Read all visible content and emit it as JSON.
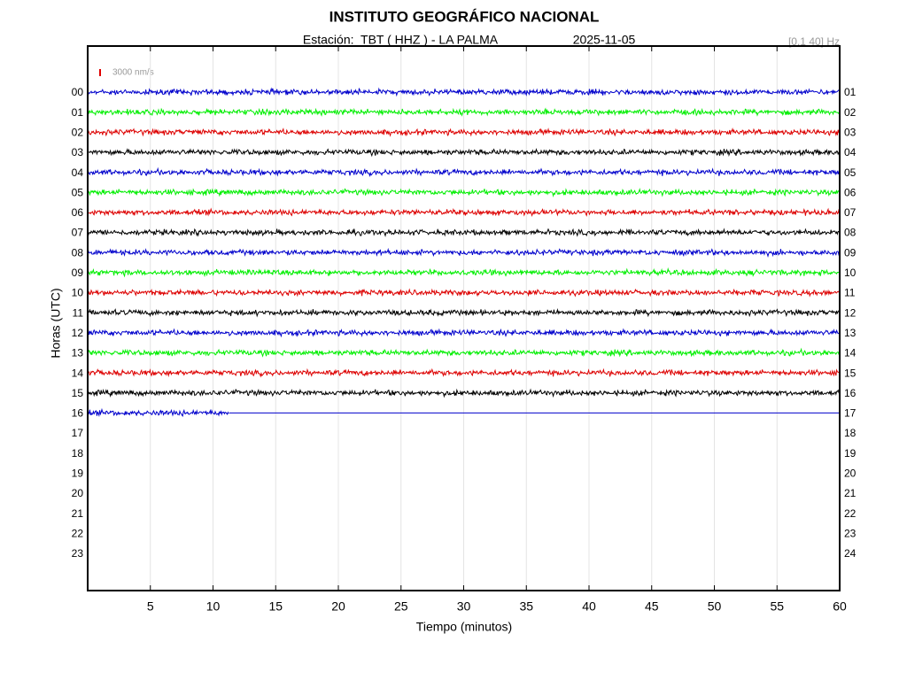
{
  "chart_data": {
    "type": "helicorder",
    "title": "INSTITUTO GEOGRÁFICO NACIONAL",
    "station": "Estación:  TBT ( HHZ ) - LA PALMA",
    "date": "2025-11-05",
    "filter": "[0.1 40] Hz",
    "scale_label": "3000 nm/s",
    "scale_value": 3000,
    "scale_color": "#e00000",
    "xlabel": "Tiempo (minutos)",
    "ylabel": "Horas (UTC)",
    "xlim": [
      0,
      60
    ],
    "xticks": [
      5,
      10,
      15,
      20,
      25,
      30,
      35,
      40,
      45,
      50,
      55,
      60
    ],
    "grid": true,
    "rows": [
      {
        "left": "00",
        "right": "01",
        "color": "#0000cc",
        "data_end": 60,
        "amplitude": 900
      },
      {
        "left": "01",
        "right": "02",
        "color": "#00ee00",
        "data_end": 60,
        "amplitude": 900
      },
      {
        "left": "02",
        "right": "03",
        "color": "#dd0000",
        "data_end": 60,
        "amplitude": 900
      },
      {
        "left": "03",
        "right": "04",
        "color": "#000000",
        "data_end": 60,
        "amplitude": 900
      },
      {
        "left": "04",
        "right": "05",
        "color": "#0000cc",
        "data_end": 60,
        "amplitude": 900
      },
      {
        "left": "05",
        "right": "06",
        "color": "#00ee00",
        "data_end": 60,
        "amplitude": 900
      },
      {
        "left": "06",
        "right": "07",
        "color": "#dd0000",
        "data_end": 60,
        "amplitude": 900
      },
      {
        "left": "07",
        "right": "08",
        "color": "#000000",
        "data_end": 60,
        "amplitude": 900
      },
      {
        "left": "08",
        "right": "09",
        "color": "#0000cc",
        "data_end": 60,
        "amplitude": 900
      },
      {
        "left": "09",
        "right": "10",
        "color": "#00ee00",
        "data_end": 60,
        "amplitude": 900
      },
      {
        "left": "10",
        "right": "11",
        "color": "#dd0000",
        "data_end": 60,
        "amplitude": 900
      },
      {
        "left": "11",
        "right": "12",
        "color": "#000000",
        "data_end": 60,
        "amplitude": 900
      },
      {
        "left": "12",
        "right": "13",
        "color": "#0000cc",
        "data_end": 60,
        "amplitude": 900
      },
      {
        "left": "13",
        "right": "14",
        "color": "#00ee00",
        "data_end": 60,
        "amplitude": 900
      },
      {
        "left": "14",
        "right": "15",
        "color": "#dd0000",
        "data_end": 60,
        "amplitude": 900
      },
      {
        "left": "15",
        "right": "16",
        "color": "#000000",
        "data_end": 60,
        "amplitude": 900
      },
      {
        "left": "16",
        "right": "17",
        "color": "#0000cc",
        "data_end": 11.3,
        "amplitude": 900
      },
      {
        "left": "17",
        "right": "18"
      },
      {
        "left": "18",
        "right": "19"
      },
      {
        "left": "19",
        "right": "20"
      },
      {
        "left": "20",
        "right": "21"
      },
      {
        "left": "21",
        "right": "22"
      },
      {
        "left": "22",
        "right": "23"
      },
      {
        "left": "23",
        "right": "24"
      }
    ]
  }
}
